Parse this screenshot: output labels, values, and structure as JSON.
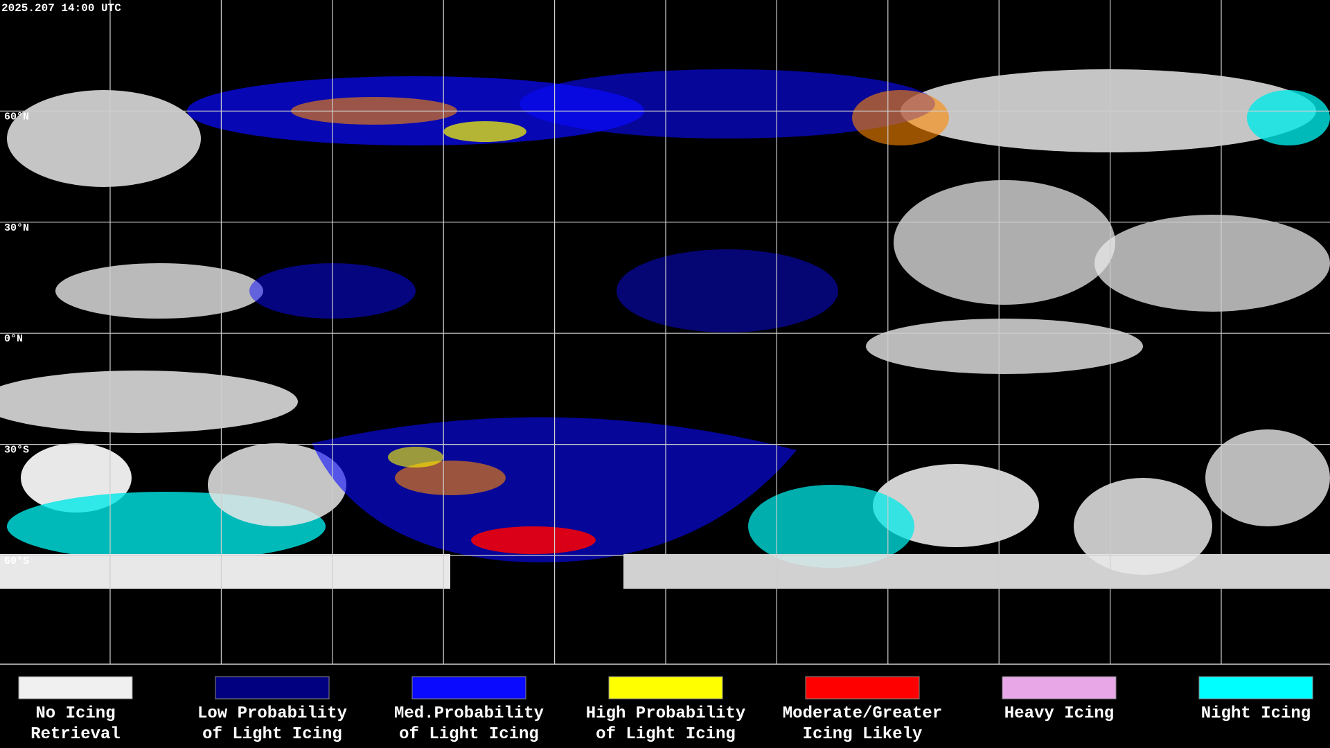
{
  "header": {
    "timestamp": "2025.207 14:00 UTC"
  },
  "map": {
    "latitude_labels": [
      "60°N",
      "30°N",
      "0°N",
      "30°S",
      "60°S"
    ]
  },
  "legend": {
    "items": [
      {
        "lines": [
          "No Icing",
          "Retrieval"
        ],
        "color": "#f0f0f0"
      },
      {
        "lines": [
          "Low Probability",
          "of Light Icing"
        ],
        "color": "#000080"
      },
      {
        "lines": [
          "Med.Probability",
          "of Light Icing"
        ],
        "color": "#0a0aff"
      },
      {
        "lines": [
          "High Probability",
          "of Light Icing"
        ],
        "color": "#ffff00"
      },
      {
        "lines": [
          "Moderate/Greater",
          "Icing Likely"
        ],
        "color": "#ff0000"
      },
      {
        "lines": [
          "Heavy Icing"
        ],
        "color": "#e8a8e8"
      },
      {
        "lines": [
          "Night Icing"
        ],
        "color": "#00ffff"
      }
    ]
  }
}
